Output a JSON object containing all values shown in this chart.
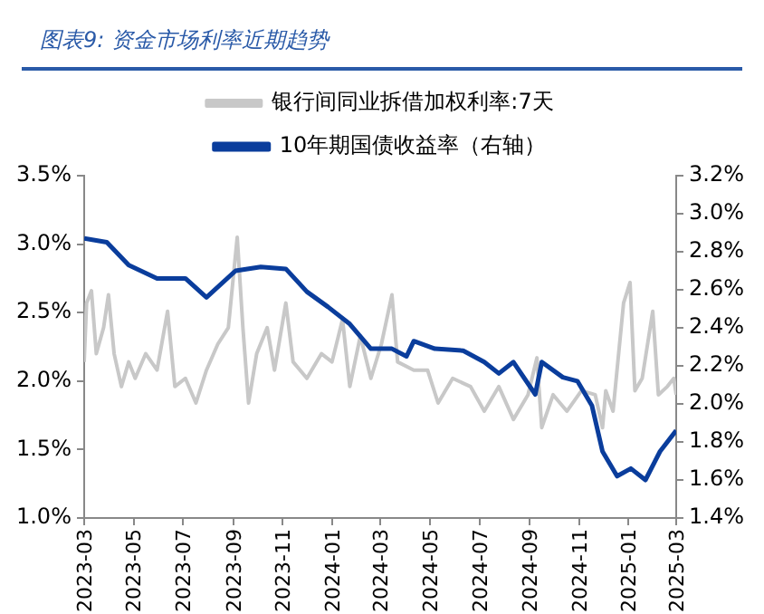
{
  "chart_data": {
    "type": "line",
    "title": "图表9:  资金市场利率近期趋势",
    "xlim": [
      "2023-03",
      "2025-03"
    ],
    "xticks": [
      "2023-03",
      "2023-05",
      "2023-07",
      "2023-09",
      "2023-11",
      "2024-01",
      "2024-03",
      "2024-05",
      "2024-07",
      "2024-09",
      "2024-11",
      "2025-01",
      "2025-03"
    ],
    "ylim": [
      1.0,
      3.5
    ],
    "yticks": [
      {
        "value": 1.0,
        "label": "1.0%"
      },
      {
        "value": 1.5,
        "label": "1.5%"
      },
      {
        "value": 2.0,
        "label": "2.0%"
      },
      {
        "value": 2.5,
        "label": "2.5%"
      },
      {
        "value": 3.0,
        "label": "3.0%"
      },
      {
        "value": 3.5,
        "label": "3.5%"
      }
    ],
    "y2lim": [
      1.4,
      3.2
    ],
    "y2ticks": [
      {
        "value": 1.4,
        "label": "1.4%"
      },
      {
        "value": 1.6,
        "label": "1.6%"
      },
      {
        "value": 1.8,
        "label": "1.8%"
      },
      {
        "value": 2.0,
        "label": "2.0%"
      },
      {
        "value": 2.2,
        "label": "2.2%"
      },
      {
        "value": 2.4,
        "label": "2.4%"
      },
      {
        "value": 2.6,
        "label": "2.6%"
      },
      {
        "value": 2.8,
        "label": "2.8%"
      },
      {
        "value": 3.0,
        "label": "3.0%"
      },
      {
        "value": 3.2,
        "label": "3.2%"
      }
    ],
    "grid": false,
    "legend": "top",
    "marker": "none",
    "line_style": "solid",
    "series": [
      {
        "name": "银行间同业拆借加权利率:7天",
        "color": "#c8c8c8",
        "x": [
          "2023-03-01",
          "2023-03-04",
          "2023-03-10",
          "2023-03-16",
          "2023-03-25",
          "2023-03-31",
          "2023-04-07",
          "2023-04-16",
          "2023-04-25",
          "2023-05-03",
          "2023-05-16",
          "2023-05-30",
          "2023-06-12",
          "2023-06-21",
          "2023-07-04",
          "2023-07-17",
          "2023-07-30",
          "2023-08-13",
          "2023-08-26",
          "2023-09-06",
          "2023-09-13",
          "2023-09-20",
          "2023-09-30",
          "2023-10-13",
          "2023-10-22",
          "2023-11-05",
          "2023-11-14",
          "2023-12-01",
          "2023-12-19",
          "2024-01-01",
          "2024-01-14",
          "2024-01-23",
          "2024-02-05",
          "2024-02-18",
          "2024-03-02",
          "2024-03-15",
          "2024-03-22",
          "2024-04-11",
          "2024-04-28",
          "2024-05-11",
          "2024-05-29",
          "2024-06-20",
          "2024-07-07",
          "2024-07-25",
          "2024-08-12",
          "2024-08-30",
          "2024-09-10",
          "2024-09-16",
          "2024-09-30",
          "2024-10-17",
          "2024-11-04",
          "2024-11-21",
          "2024-11-30",
          "2024-12-04",
          "2024-12-13",
          "2024-12-26",
          "2025-01-03",
          "2025-01-09",
          "2025-01-18",
          "2025-01-31",
          "2025-02-07",
          "2025-02-18",
          "2025-02-26",
          "2025-03-01"
        ],
        "values": [
          2.14,
          2.57,
          2.66,
          2.2,
          2.39,
          2.63,
          2.2,
          1.96,
          2.14,
          2.02,
          2.2,
          2.08,
          2.51,
          1.96,
          2.02,
          1.84,
          2.08,
          2.27,
          2.39,
          3.05,
          2.39,
          1.84,
          2.2,
          2.39,
          2.08,
          2.57,
          2.14,
          2.02,
          2.2,
          2.14,
          2.45,
          1.96,
          2.33,
          2.02,
          2.27,
          2.63,
          2.14,
          2.08,
          2.08,
          1.84,
          2.02,
          1.96,
          1.78,
          1.96,
          1.72,
          1.9,
          2.17,
          1.66,
          1.9,
          1.78,
          1.93,
          1.9,
          1.66,
          1.93,
          1.78,
          2.57,
          2.72,
          1.93,
          2.02,
          2.51,
          1.9,
          1.96,
          2.02,
          1.9
        ]
      },
      {
        "name": "10年期国债收益率（右轴）",
        "color": "#0a3d9c",
        "axis": "y2",
        "x": [
          "2023-03-01",
          "2023-03-29",
          "2023-04-25",
          "2023-05-30",
          "2023-07-04",
          "2023-07-30",
          "2023-09-04",
          "2023-10-05",
          "2023-11-05",
          "2023-12-01",
          "2023-12-27",
          "2024-01-23",
          "2024-02-18",
          "2024-03-15",
          "2024-04-02",
          "2024-04-11",
          "2024-05-07",
          "2024-06-11",
          "2024-07-07",
          "2024-07-25",
          "2024-08-12",
          "2024-09-08",
          "2024-09-16",
          "2024-10-12",
          "2024-10-30",
          "2024-11-17",
          "2024-11-30",
          "2024-12-18",
          "2025-01-04",
          "2025-01-22",
          "2025-02-09",
          "2025-03-01"
        ],
        "values": [
          2.87,
          2.85,
          2.73,
          2.66,
          2.66,
          2.56,
          2.7,
          2.72,
          2.71,
          2.59,
          2.51,
          2.42,
          2.29,
          2.29,
          2.25,
          2.33,
          2.29,
          2.28,
          2.22,
          2.16,
          2.22,
          2.05,
          2.22,
          2.14,
          2.12,
          1.99,
          1.75,
          1.62,
          1.66,
          1.6,
          1.75,
          1.86
        ]
      }
    ]
  }
}
